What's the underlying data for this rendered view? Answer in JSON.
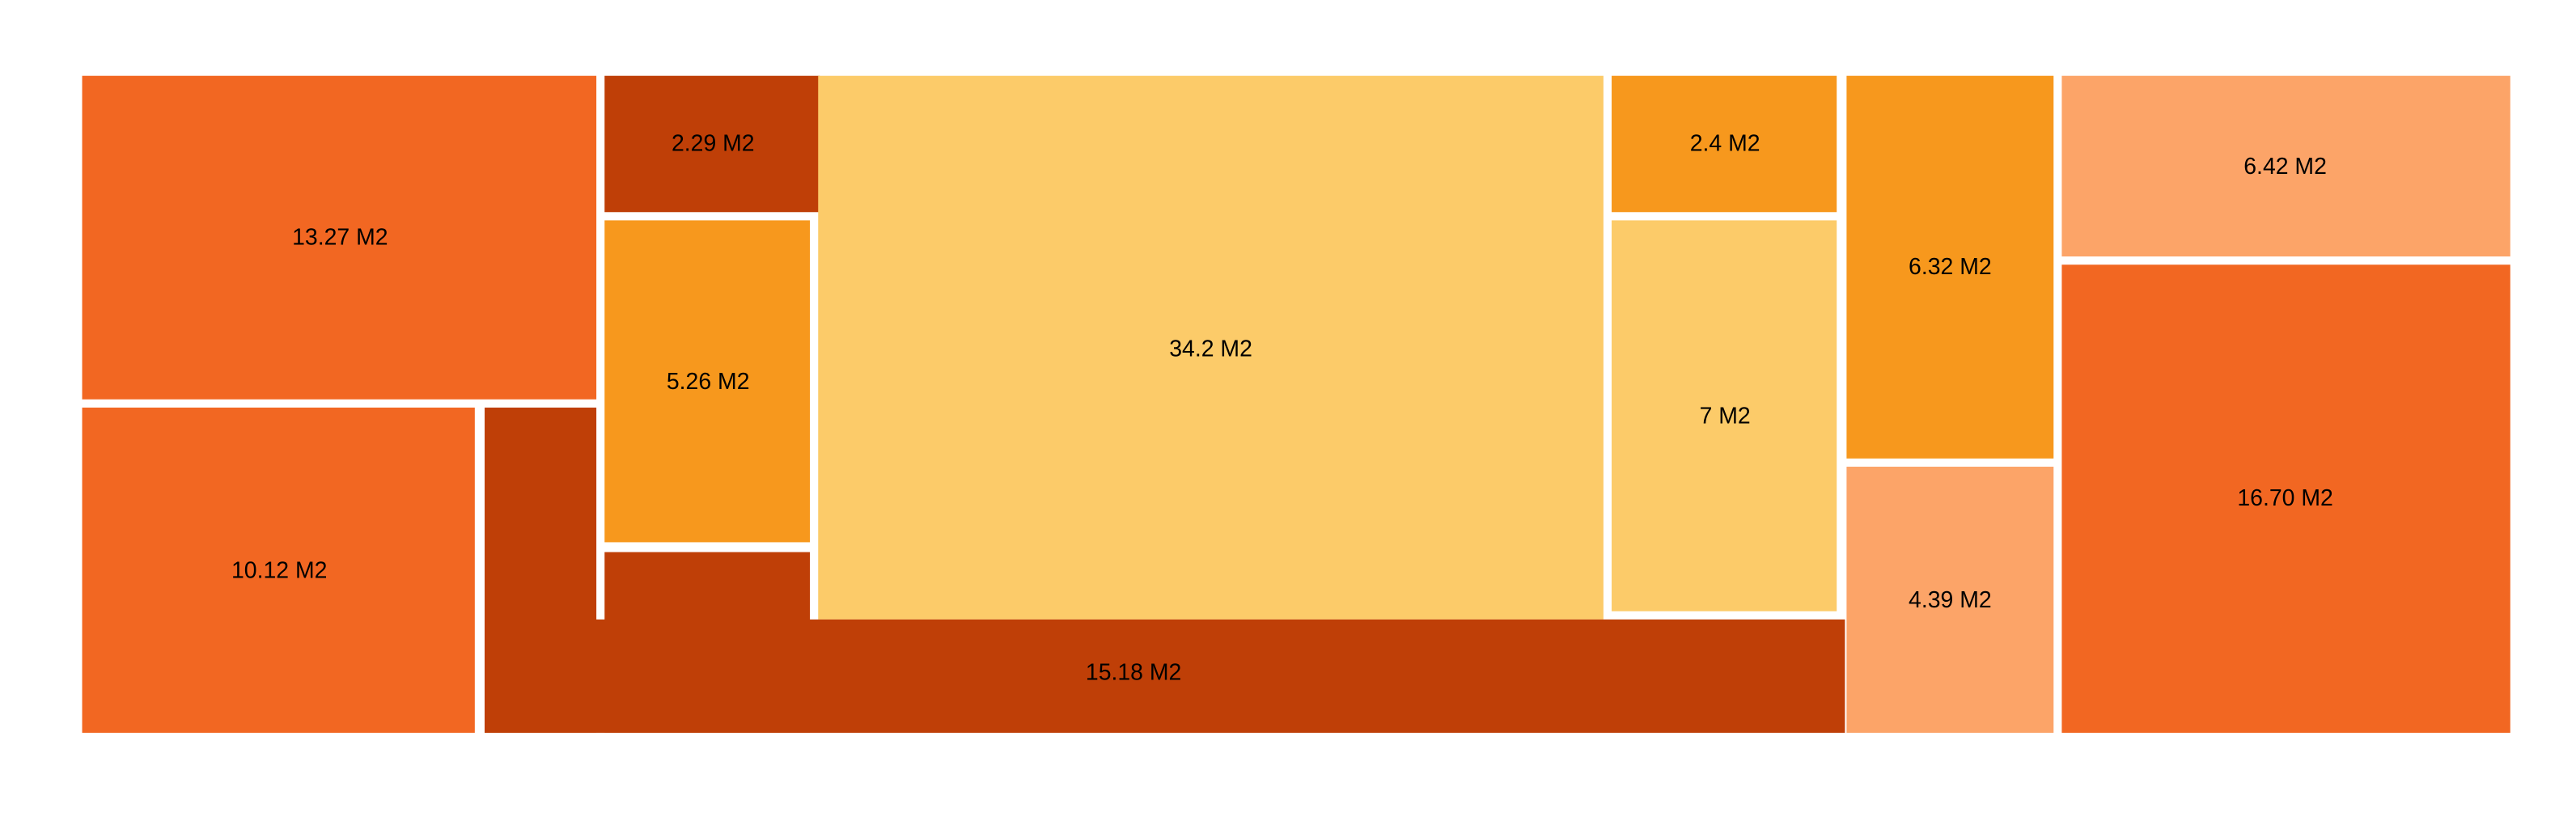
{
  "colors": {
    "dark_rust": "#BF3F07",
    "orange": "#F26722",
    "amber": "#F7981D",
    "light_yellow": "#FCCB69",
    "peach": "#FCA468",
    "background": "#FFFFFF"
  },
  "rooms": [
    {
      "label": "13.27 M2",
      "area": 13.27,
      "color": "orange"
    },
    {
      "label": "10.12 M2",
      "area": 10.12,
      "color": "orange"
    },
    {
      "label": "2.29 M2",
      "area": 2.29,
      "color": "dark_rust"
    },
    {
      "label": "5.26 M2",
      "area": 5.26,
      "color": "amber"
    },
    {
      "label": "34.2 M2",
      "area": 34.2,
      "color": "light_yellow"
    },
    {
      "label": "15.18 M2",
      "area": 15.18,
      "color": "dark_rust"
    },
    {
      "label": "2.4 M2",
      "area": 2.4,
      "color": "amber"
    },
    {
      "label": "7 M2",
      "area": 7,
      "color": "light_yellow"
    },
    {
      "label": "6.32 M2",
      "area": 6.32,
      "color": "amber"
    },
    {
      "label": "4.39 M2",
      "area": 4.39,
      "color": "peach"
    },
    {
      "label": "6.42 M2",
      "area": 6.42,
      "color": "peach"
    },
    {
      "label": "16.70 M2",
      "area": 16.7,
      "color": "orange"
    }
  ]
}
